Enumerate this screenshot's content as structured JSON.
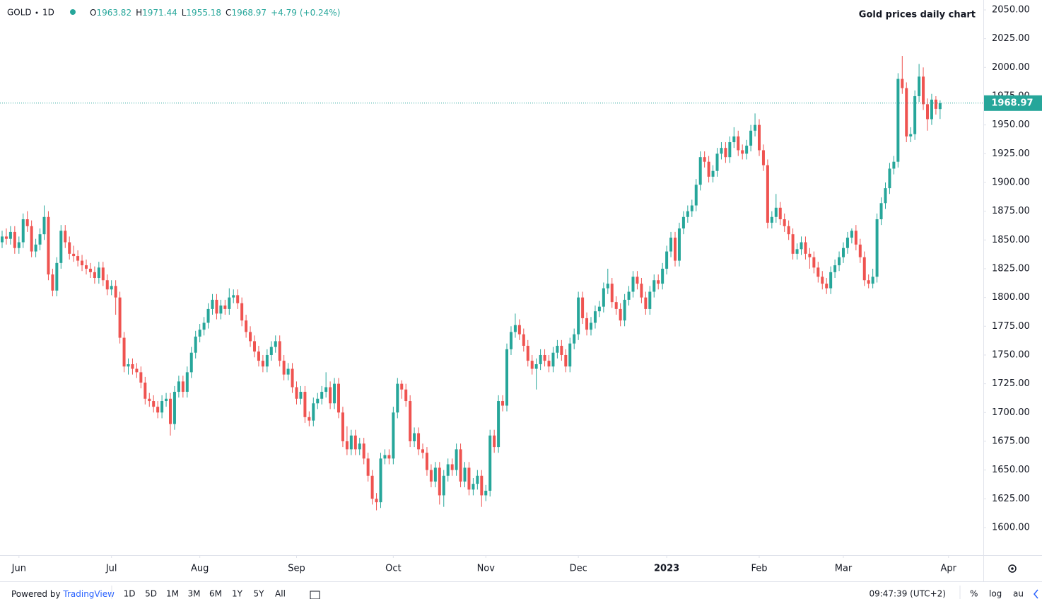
{
  "chart_data": {
    "type": "candlestick",
    "title": "Gold prices daily chart",
    "symbol": "GOLD",
    "interval": "1D",
    "ohlc_prefixes": [
      "O",
      "H",
      "L",
      "C"
    ],
    "change": {
      "value": 4.79,
      "label": "+4.79"
    },
    "change_percent": {
      "value": 0.24,
      "label": "(+0.24%)"
    },
    "up_color": "#26a69a",
    "down_color": "#ef5350",
    "grid": false,
    "ylim": [
      1576,
      2058.6
    ],
    "yticks": [
      {
        "value": 1600,
        "label": "1600.00"
      },
      {
        "value": 1625,
        "label": "1625.00"
      },
      {
        "value": 1650,
        "label": "1650.00"
      },
      {
        "value": 1675,
        "label": "1675.00"
      },
      {
        "value": 1700,
        "label": "1700.00"
      },
      {
        "value": 1725,
        "label": "1725.00"
      },
      {
        "value": 1750,
        "label": "1750.00"
      },
      {
        "value": 1775,
        "label": "1775.00"
      },
      {
        "value": 1800,
        "label": "1800.00"
      },
      {
        "value": 1825,
        "label": "1825.00"
      },
      {
        "value": 1850,
        "label": "1850.00"
      },
      {
        "value": 1875,
        "label": "1875.00"
      },
      {
        "value": 1900,
        "label": "1900.00"
      },
      {
        "value": 1925,
        "label": "1925.00"
      },
      {
        "value": 1950,
        "label": "1950.00"
      },
      {
        "value": 1975,
        "label": "1975.00"
      },
      {
        "value": 2000,
        "label": "2000.00"
      },
      {
        "value": 2025,
        "label": "2025.00"
      },
      {
        "value": 2050,
        "label": "2050.00"
      }
    ],
    "xticks": [
      {
        "value": 4,
        "label": "Jun"
      },
      {
        "value": 26,
        "label": "Jul"
      },
      {
        "value": 47,
        "label": "Aug"
      },
      {
        "value": 70,
        "label": "Sep"
      },
      {
        "value": 93,
        "label": "Oct"
      },
      {
        "value": 115,
        "label": "Nov"
      },
      {
        "value": 137,
        "label": "Dec"
      },
      {
        "value": 158,
        "label": "2023"
      },
      {
        "value": 180,
        "label": "Feb"
      },
      {
        "value": 200,
        "label": "Mar"
      },
      {
        "value": 225,
        "label": "Apr"
      }
    ],
    "candles": [
      [
        1848,
        1858,
        1843,
        1853
      ],
      [
        1853,
        1860,
        1846,
        1851
      ],
      [
        1851,
        1862,
        1846,
        1857
      ],
      [
        1857,
        1862,
        1838,
        1843
      ],
      [
        1843,
        1853,
        1838,
        1848
      ],
      [
        1848,
        1873,
        1843,
        1868
      ],
      [
        1868,
        1875,
        1857,
        1862
      ],
      [
        1862,
        1867,
        1835,
        1840
      ],
      [
        1840,
        1851,
        1835,
        1846
      ],
      [
        1846,
        1860,
        1841,
        1855
      ],
      [
        1855,
        1880,
        1850,
        1870
      ],
      [
        1870,
        1875,
        1815,
        1820
      ],
      [
        1820,
        1825,
        1801,
        1806
      ],
      [
        1806,
        1835,
        1801,
        1830
      ],
      [
        1830,
        1863,
        1825,
        1858
      ],
      [
        1858,
        1863,
        1843,
        1848
      ],
      [
        1848,
        1853,
        1833,
        1838
      ],
      [
        1838,
        1845,
        1831,
        1836
      ],
      [
        1836,
        1841,
        1827,
        1832
      ],
      [
        1832,
        1837,
        1823,
        1828
      ],
      [
        1828,
        1833,
        1820,
        1825
      ],
      [
        1825,
        1830,
        1817,
        1822
      ],
      [
        1822,
        1827,
        1812,
        1817
      ],
      [
        1817,
        1831,
        1812,
        1826
      ],
      [
        1826,
        1831,
        1810,
        1815
      ],
      [
        1815,
        1820,
        1802,
        1807
      ],
      [
        1807,
        1815,
        1802,
        1810
      ],
      [
        1810,
        1815,
        1785,
        1800
      ],
      [
        1800,
        1805,
        1760,
        1765
      ],
      [
        1765,
        1770,
        1735,
        1740
      ],
      [
        1740,
        1747,
        1733,
        1742
      ],
      [
        1742,
        1747,
        1733,
        1738
      ],
      [
        1738,
        1743,
        1730,
        1735
      ],
      [
        1735,
        1740,
        1721,
        1726
      ],
      [
        1726,
        1731,
        1707,
        1712
      ],
      [
        1712,
        1717,
        1705,
        1710
      ],
      [
        1710,
        1715,
        1700,
        1705
      ],
      [
        1705,
        1710,
        1695,
        1700
      ],
      [
        1700,
        1715,
        1695,
        1710
      ],
      [
        1710,
        1717,
        1705,
        1712
      ],
      [
        1712,
        1717,
        1680,
        1690
      ],
      [
        1690,
        1723,
        1685,
        1718
      ],
      [
        1718,
        1732,
        1713,
        1727
      ],
      [
        1727,
        1732,
        1713,
        1718
      ],
      [
        1718,
        1740,
        1713,
        1735
      ],
      [
        1735,
        1757,
        1730,
        1752
      ],
      [
        1752,
        1771,
        1747,
        1766
      ],
      [
        1766,
        1777,
        1761,
        1772
      ],
      [
        1772,
        1783,
        1767,
        1778
      ],
      [
        1778,
        1795,
        1773,
        1790
      ],
      [
        1790,
        1803,
        1785,
        1798
      ],
      [
        1798,
        1803,
        1781,
        1786
      ],
      [
        1786,
        1798,
        1781,
        1793
      ],
      [
        1793,
        1798,
        1785,
        1790
      ],
      [
        1790,
        1808,
        1785,
        1800
      ],
      [
        1800,
        1807,
        1795,
        1802
      ],
      [
        1802,
        1807,
        1790,
        1795
      ],
      [
        1795,
        1800,
        1775,
        1780
      ],
      [
        1780,
        1785,
        1765,
        1770
      ],
      [
        1770,
        1775,
        1757,
        1762
      ],
      [
        1762,
        1767,
        1748,
        1753
      ],
      [
        1753,
        1758,
        1740,
        1745
      ],
      [
        1745,
        1750,
        1735,
        1740
      ],
      [
        1740,
        1755,
        1735,
        1750
      ],
      [
        1750,
        1762,
        1745,
        1757
      ],
      [
        1757,
        1767,
        1752,
        1762
      ],
      [
        1762,
        1767,
        1740,
        1745
      ],
      [
        1745,
        1750,
        1728,
        1733
      ],
      [
        1733,
        1743,
        1728,
        1738
      ],
      [
        1738,
        1743,
        1717,
        1722
      ],
      [
        1722,
        1727,
        1707,
        1712
      ],
      [
        1712,
        1723,
        1707,
        1718
      ],
      [
        1718,
        1723,
        1691,
        1696
      ],
      [
        1696,
        1701,
        1688,
        1693
      ],
      [
        1693,
        1713,
        1688,
        1708
      ],
      [
        1708,
        1717,
        1703,
        1712
      ],
      [
        1712,
        1723,
        1707,
        1718
      ],
      [
        1718,
        1735,
        1713,
        1722
      ],
      [
        1722,
        1727,
        1703,
        1708
      ],
      [
        1708,
        1730,
        1703,
        1725
      ],
      [
        1725,
        1730,
        1695,
        1700
      ],
      [
        1700,
        1705,
        1670,
        1675
      ],
      [
        1675,
        1688,
        1663,
        1668
      ],
      [
        1668,
        1685,
        1663,
        1680
      ],
      [
        1680,
        1685,
        1663,
        1668
      ],
      [
        1668,
        1678,
        1663,
        1673
      ],
      [
        1673,
        1678,
        1655,
        1660
      ],
      [
        1660,
        1665,
        1640,
        1645
      ],
      [
        1645,
        1650,
        1620,
        1625
      ],
      [
        1625,
        1630,
        1615,
        1622
      ],
      [
        1622,
        1665,
        1617,
        1660
      ],
      [
        1660,
        1668,
        1655,
        1663
      ],
      [
        1663,
        1668,
        1655,
        1660
      ],
      [
        1660,
        1705,
        1655,
        1700
      ],
      [
        1700,
        1730,
        1695,
        1725
      ],
      [
        1725,
        1728,
        1712,
        1720
      ],
      [
        1720,
        1725,
        1705,
        1710
      ],
      [
        1710,
        1715,
        1670,
        1675
      ],
      [
        1675,
        1687,
        1670,
        1682
      ],
      [
        1682,
        1687,
        1663,
        1668
      ],
      [
        1668,
        1673,
        1660,
        1665
      ],
      [
        1665,
        1670,
        1645,
        1650
      ],
      [
        1650,
        1655,
        1635,
        1640
      ],
      [
        1640,
        1657,
        1635,
        1652
      ],
      [
        1652,
        1657,
        1620,
        1628
      ],
      [
        1628,
        1650,
        1618,
        1645
      ],
      [
        1645,
        1660,
        1640,
        1655
      ],
      [
        1655,
        1660,
        1645,
        1650
      ],
      [
        1650,
        1673,
        1645,
        1668
      ],
      [
        1668,
        1673,
        1635,
        1640
      ],
      [
        1640,
        1657,
        1635,
        1652
      ],
      [
        1652,
        1657,
        1628,
        1633
      ],
      [
        1633,
        1643,
        1628,
        1638
      ],
      [
        1638,
        1650,
        1633,
        1645
      ],
      [
        1645,
        1650,
        1618,
        1628
      ],
      [
        1628,
        1637,
        1623,
        1632
      ],
      [
        1632,
        1685,
        1627,
        1680
      ],
      [
        1680,
        1685,
        1665,
        1670
      ],
      [
        1670,
        1715,
        1665,
        1710
      ],
      [
        1710,
        1715,
        1701,
        1706
      ],
      [
        1706,
        1760,
        1701,
        1755
      ],
      [
        1755,
        1775,
        1750,
        1770
      ],
      [
        1770,
        1786,
        1765,
        1776
      ],
      [
        1776,
        1781,
        1763,
        1768
      ],
      [
        1768,
        1773,
        1753,
        1758
      ],
      [
        1758,
        1763,
        1740,
        1745
      ],
      [
        1745,
        1750,
        1733,
        1738
      ],
      [
        1738,
        1747,
        1720,
        1742
      ],
      [
        1742,
        1755,
        1737,
        1750
      ],
      [
        1750,
        1755,
        1740,
        1745
      ],
      [
        1745,
        1750,
        1735,
        1740
      ],
      [
        1740,
        1757,
        1735,
        1752
      ],
      [
        1752,
        1763,
        1747,
        1758
      ],
      [
        1758,
        1763,
        1745,
        1750
      ],
      [
        1750,
        1755,
        1735,
        1740
      ],
      [
        1740,
        1765,
        1735,
        1760
      ],
      [
        1760,
        1773,
        1755,
        1768
      ],
      [
        1768,
        1805,
        1763,
        1800
      ],
      [
        1800,
        1805,
        1777,
        1782
      ],
      [
        1782,
        1787,
        1767,
        1772
      ],
      [
        1772,
        1783,
        1767,
        1778
      ],
      [
        1778,
        1793,
        1773,
        1788
      ],
      [
        1788,
        1797,
        1783,
        1792
      ],
      [
        1792,
        1813,
        1787,
        1808
      ],
      [
        1808,
        1825,
        1803,
        1812
      ],
      [
        1812,
        1817,
        1791,
        1796
      ],
      [
        1796,
        1801,
        1785,
        1790
      ],
      [
        1790,
        1795,
        1775,
        1780
      ],
      [
        1780,
        1803,
        1775,
        1798
      ],
      [
        1798,
        1810,
        1793,
        1805
      ],
      [
        1805,
        1823,
        1800,
        1818
      ],
      [
        1818,
        1823,
        1807,
        1812
      ],
      [
        1812,
        1817,
        1795,
        1800
      ],
      [
        1800,
        1805,
        1785,
        1790
      ],
      [
        1790,
        1810,
        1785,
        1805
      ],
      [
        1805,
        1820,
        1800,
        1815
      ],
      [
        1815,
        1820,
        1807,
        1812
      ],
      [
        1812,
        1830,
        1807,
        1825
      ],
      [
        1825,
        1845,
        1820,
        1840
      ],
      [
        1840,
        1857,
        1835,
        1852
      ],
      [
        1852,
        1857,
        1827,
        1832
      ],
      [
        1832,
        1865,
        1827,
        1860
      ],
      [
        1860,
        1875,
        1855,
        1870
      ],
      [
        1870,
        1880,
        1865,
        1875
      ],
      [
        1875,
        1885,
        1870,
        1880
      ],
      [
        1880,
        1903,
        1875,
        1898
      ],
      [
        1898,
        1927,
        1893,
        1922
      ],
      [
        1922,
        1927,
        1913,
        1918
      ],
      [
        1918,
        1923,
        1900,
        1905
      ],
      [
        1905,
        1915,
        1900,
        1910
      ],
      [
        1910,
        1930,
        1905,
        1925
      ],
      [
        1925,
        1935,
        1920,
        1930
      ],
      [
        1930,
        1935,
        1917,
        1922
      ],
      [
        1922,
        1940,
        1917,
        1935
      ],
      [
        1935,
        1948,
        1930,
        1940
      ],
      [
        1940,
        1945,
        1923,
        1928
      ],
      [
        1928,
        1933,
        1920,
        1925
      ],
      [
        1925,
        1937,
        1920,
        1932
      ],
      [
        1932,
        1950,
        1927,
        1945
      ],
      [
        1945,
        1960,
        1940,
        1950
      ],
      [
        1950,
        1955,
        1923,
        1928
      ],
      [
        1928,
        1933,
        1910,
        1915
      ],
      [
        1915,
        1920,
        1860,
        1865
      ],
      [
        1865,
        1875,
        1860,
        1870
      ],
      [
        1870,
        1890,
        1865,
        1878
      ],
      [
        1878,
        1883,
        1863,
        1868
      ],
      [
        1868,
        1873,
        1857,
        1862
      ],
      [
        1862,
        1867,
        1850,
        1855
      ],
      [
        1855,
        1860,
        1833,
        1838
      ],
      [
        1838,
        1847,
        1833,
        1842
      ],
      [
        1842,
        1853,
        1837,
        1848
      ],
      [
        1848,
        1853,
        1833,
        1838
      ],
      [
        1838,
        1843,
        1825,
        1835
      ],
      [
        1835,
        1840,
        1821,
        1826
      ],
      [
        1826,
        1831,
        1813,
        1818
      ],
      [
        1818,
        1823,
        1807,
        1812
      ],
      [
        1812,
        1817,
        1803,
        1808
      ],
      [
        1808,
        1827,
        1803,
        1822
      ],
      [
        1822,
        1833,
        1817,
        1828
      ],
      [
        1828,
        1840,
        1823,
        1835
      ],
      [
        1835,
        1848,
        1830,
        1843
      ],
      [
        1843,
        1857,
        1838,
        1852
      ],
      [
        1852,
        1860,
        1847,
        1858
      ],
      [
        1858,
        1863,
        1841,
        1846
      ],
      [
        1846,
        1851,
        1830,
        1835
      ],
      [
        1835,
        1840,
        1810,
        1815
      ],
      [
        1815,
        1820,
        1808,
        1812
      ],
      [
        1812,
        1825,
        1808,
        1818
      ],
      [
        1818,
        1873,
        1813,
        1868
      ],
      [
        1868,
        1887,
        1863,
        1882
      ],
      [
        1882,
        1900,
        1877,
        1895
      ],
      [
        1895,
        1917,
        1890,
        1912
      ],
      [
        1912,
        1923,
        1907,
        1918
      ],
      [
        1918,
        1995,
        1913,
        1990
      ],
      [
        1990,
        2010,
        1977,
        1982
      ],
      [
        1982,
        1987,
        1935,
        1940
      ],
      [
        1940,
        1948,
        1935,
        1942
      ],
      [
        1942,
        1980,
        1937,
        1975
      ],
      [
        1975,
        2003,
        1970,
        1992
      ],
      [
        1992,
        2000,
        1963,
        1968
      ],
      [
        1968,
        1973,
        1945,
        1955
      ],
      [
        1955,
        1977,
        1950,
        1972
      ],
      [
        1972,
        1975,
        1959,
        1964
      ],
      [
        1963.82,
        1971.44,
        1955.18,
        1968.97
      ]
    ],
    "toolbar": {
      "powered_by": "Powered by",
      "brand": "TradingView",
      "ranges": [
        "1D",
        "5D",
        "1M",
        "3M",
        "6M",
        "1Y",
        "5Y",
        "All"
      ],
      "clock": "09:47:39 (UTC+2)",
      "percent": "%",
      "log": "log",
      "auto": "au"
    }
  }
}
